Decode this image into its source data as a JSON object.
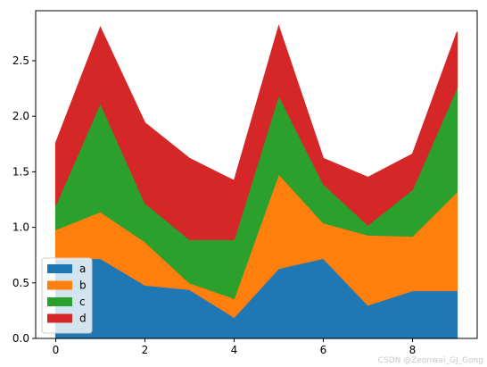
{
  "chart_data": {
    "type": "area",
    "stacked": true,
    "x": [
      0,
      1,
      2,
      3,
      4,
      5,
      6,
      7,
      8,
      9
    ],
    "series": [
      {
        "name": "a",
        "color": "#1f77b4",
        "values": [
          0.71,
          0.72,
          0.48,
          0.44,
          0.19,
          0.63,
          0.72,
          0.3,
          0.43,
          0.43
        ]
      },
      {
        "name": "b",
        "color": "#ff7f0e",
        "values": [
          0.27,
          0.42,
          0.39,
          0.06,
          0.17,
          0.85,
          0.32,
          0.63,
          0.49,
          0.89
        ]
      },
      {
        "name": "c",
        "color": "#2ca02c",
        "values": [
          0.22,
          0.98,
          0.35,
          0.39,
          0.53,
          0.71,
          0.35,
          0.09,
          0.42,
          0.94
        ]
      },
      {
        "name": "d",
        "color": "#d62728",
        "values": [
          0.56,
          0.68,
          0.72,
          0.73,
          0.53,
          0.62,
          0.23,
          0.43,
          0.32,
          0.5
        ]
      }
    ],
    "xlim": [
      -0.45,
      9.45
    ],
    "ylim": [
      0,
      2.95
    ],
    "xticks": [
      0,
      2,
      4,
      6,
      8
    ],
    "yticks": [
      0.0,
      0.5,
      1.0,
      1.5,
      2.0,
      2.5
    ],
    "ytick_labels": [
      "0.0",
      "0.5",
      "1.0",
      "1.5",
      "2.0",
      "2.5"
    ],
    "legend_position": "lower-left",
    "grid": false,
    "title": "",
    "xlabel": "",
    "ylabel": ""
  },
  "watermark": "CSDN @Zeonwai_GJ_Gong"
}
